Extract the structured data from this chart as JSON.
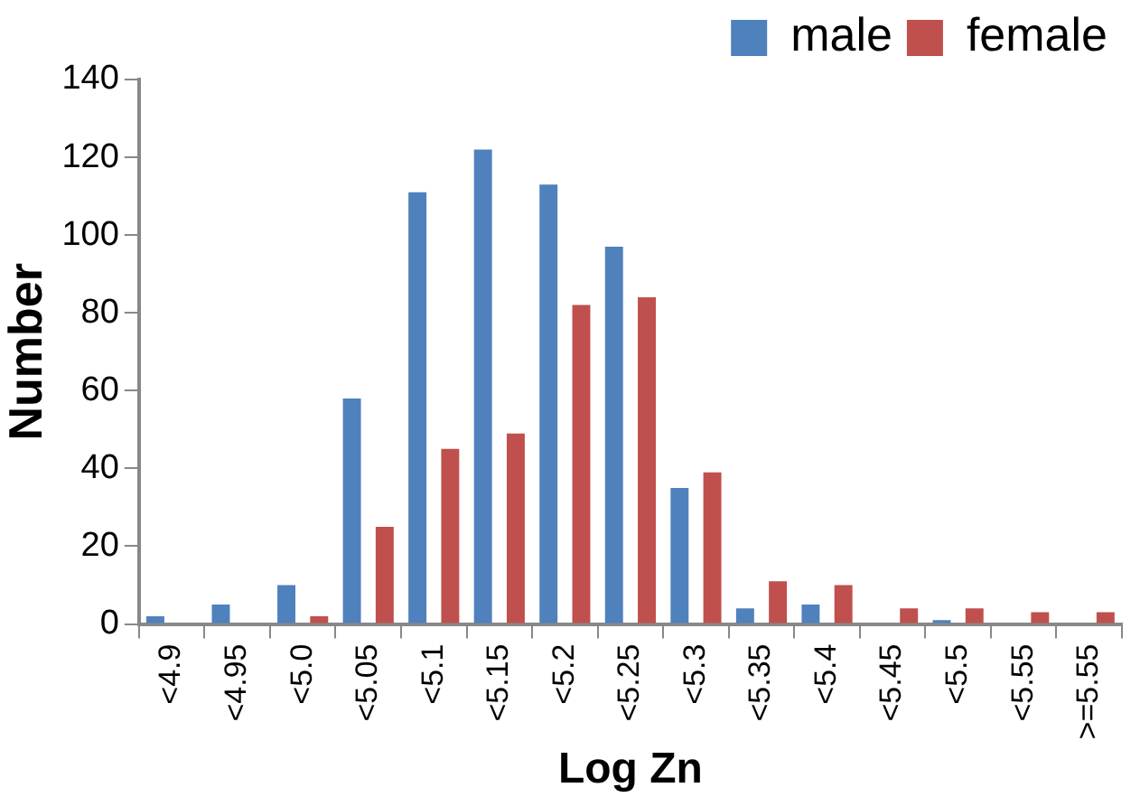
{
  "chart_data": {
    "type": "bar",
    "xlabel": "Log Zn",
    "ylabel": "Number",
    "categories": [
      "<4.9",
      "<4.95",
      "<5.0",
      "<5.05",
      "<5.1",
      "<5.15",
      "<5.2",
      "<5.25",
      "<5.3",
      "<5.35",
      "<5.4",
      "<5.45",
      "<5.5",
      "<5.55",
      ">=5.55"
    ],
    "series": [
      {
        "name": "male",
        "color": "#4f81bd",
        "values": [
          2,
          5,
          10,
          58,
          111,
          122,
          113,
          97,
          35,
          4,
          5,
          0,
          1,
          0,
          0
        ]
      },
      {
        "name": "female",
        "color": "#c0504d",
        "values": [
          0,
          0,
          2,
          25,
          45,
          49,
          82,
          84,
          39,
          11,
          10,
          4,
          4,
          3,
          3
        ]
      }
    ],
    "ylim": [
      0,
      140
    ],
    "yticks": [
      0,
      20,
      40,
      60,
      80,
      100,
      120,
      140
    ],
    "grid": false,
    "legend": "top right"
  }
}
